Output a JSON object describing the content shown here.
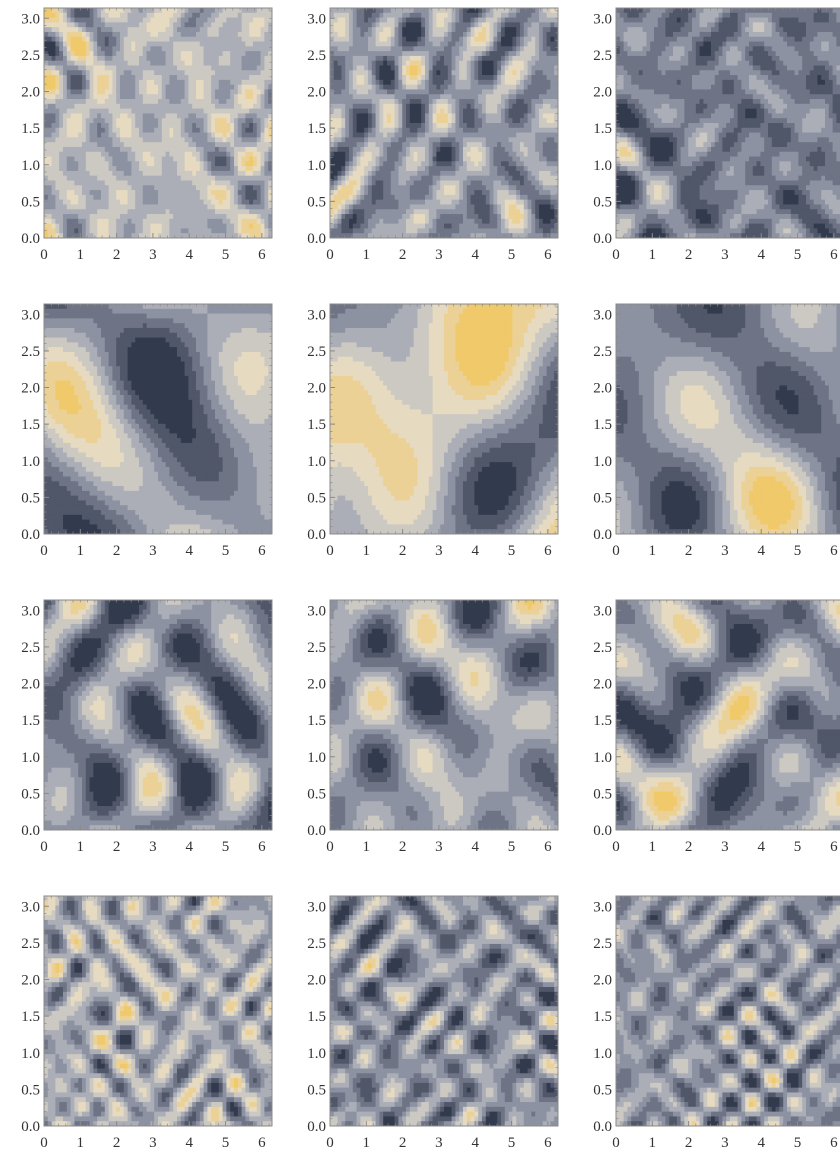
{
  "figure": {
    "colors": {
      "dark": "#323a4d",
      "mid": "#9ea3b2",
      "light": "#e5dccb",
      "warm": "#f0c96a",
      "frame": "#8a8a8a",
      "contour": "#2a2a2a"
    }
  },
  "chart_data": [
    {
      "type": "heatmap",
      "variant": "contour",
      "row": 1,
      "col": 1,
      "seed": 11,
      "complexity": "high",
      "warm_bias": 0.1,
      "xlim": [
        0,
        6.28
      ],
      "ylim": [
        0,
        3.14
      ],
      "x_ticks": [
        "0",
        "1",
        "2",
        "3",
        "4",
        "5",
        "6"
      ],
      "y_ticks": [
        "0.0",
        "0.5",
        "1.0",
        "1.5",
        "2.0",
        "2.5",
        "3.0"
      ],
      "grid": false
    },
    {
      "type": "heatmap",
      "variant": "contour",
      "row": 1,
      "col": 2,
      "seed": 12,
      "complexity": "high",
      "warm_bias": 0.0,
      "xlim": [
        0,
        6.28
      ],
      "ylim": [
        0,
        3.14
      ],
      "x_ticks": [
        "0",
        "1",
        "2",
        "3",
        "4",
        "5",
        "6"
      ],
      "y_ticks": [
        "0.0",
        "0.5",
        "1.0",
        "1.5",
        "2.0",
        "2.5",
        "3.0"
      ],
      "grid": false
    },
    {
      "type": "heatmap",
      "variant": "contour",
      "row": 1,
      "col": 3,
      "seed": 13,
      "complexity": "high",
      "warm_bias": -0.1,
      "xlim": [
        0,
        6.28
      ],
      "ylim": [
        0,
        3.14
      ],
      "x_ticks": [
        "0",
        "1",
        "2",
        "3",
        "4",
        "5",
        "6"
      ],
      "y_ticks": [
        "0.0",
        "0.5",
        "1.0",
        "1.5",
        "2.0",
        "2.5",
        "3.0"
      ],
      "grid": false
    },
    {
      "type": "heatmap",
      "variant": "contour",
      "row": 2,
      "col": 1,
      "seed": 21,
      "complexity": "low",
      "warm_bias": 0.0,
      "xlim": [
        0,
        6.28
      ],
      "ylim": [
        0,
        3.14
      ],
      "x_ticks": [
        "0",
        "1",
        "2",
        "3",
        "4",
        "5",
        "6"
      ],
      "y_ticks": [
        "0.0",
        "0.5",
        "1.0",
        "1.5",
        "2.0",
        "2.5",
        "3.0"
      ],
      "grid": false
    },
    {
      "type": "heatmap",
      "variant": "contour",
      "row": 2,
      "col": 2,
      "seed": 22,
      "complexity": "low",
      "warm_bias": 0.1,
      "xlim": [
        0,
        6.28
      ],
      "ylim": [
        0,
        3.14
      ],
      "x_ticks": [
        "0",
        "1",
        "2",
        "3",
        "4",
        "5",
        "6"
      ],
      "y_ticks": [
        "0.0",
        "0.5",
        "1.0",
        "1.5",
        "2.0",
        "2.5",
        "3.0"
      ],
      "grid": false
    },
    {
      "type": "heatmap",
      "variant": "contour",
      "row": 2,
      "col": 3,
      "seed": 23,
      "complexity": "low",
      "warm_bias": 0.1,
      "xlim": [
        0,
        6.28
      ],
      "ylim": [
        0,
        3.14
      ],
      "x_ticks": [
        "0",
        "1",
        "2",
        "3",
        "4",
        "5",
        "6"
      ],
      "y_ticks": [
        "0.0",
        "0.5",
        "1.0",
        "1.5",
        "2.0",
        "2.5",
        "3.0"
      ],
      "grid": false
    },
    {
      "type": "heatmap",
      "variant": "contour",
      "row": 3,
      "col": 1,
      "seed": 31,
      "complexity": "medium",
      "warm_bias": -0.05,
      "xlim": [
        0,
        6.28
      ],
      "ylim": [
        0,
        3.14
      ],
      "x_ticks": [
        "0",
        "1",
        "2",
        "3",
        "4",
        "5",
        "6"
      ],
      "y_ticks": [
        "0.0",
        "0.5",
        "1.0",
        "1.5",
        "2.0",
        "2.5",
        "3.0"
      ],
      "grid": false
    },
    {
      "type": "heatmap",
      "variant": "contour",
      "row": 3,
      "col": 2,
      "seed": 32,
      "complexity": "medium",
      "warm_bias": 0.0,
      "xlim": [
        0,
        6.28
      ],
      "ylim": [
        0,
        3.14
      ],
      "x_ticks": [
        "0",
        "1",
        "2",
        "3",
        "4",
        "5",
        "6"
      ],
      "y_ticks": [
        "0.0",
        "0.5",
        "1.0",
        "1.5",
        "2.0",
        "2.5",
        "3.0"
      ],
      "grid": false
    },
    {
      "type": "heatmap",
      "variant": "contour",
      "row": 3,
      "col": 3,
      "seed": 33,
      "complexity": "medium",
      "warm_bias": 0.05,
      "xlim": [
        0,
        6.28
      ],
      "ylim": [
        0,
        3.14
      ],
      "x_ticks": [
        "0",
        "1",
        "2",
        "3",
        "4",
        "5",
        "6"
      ],
      "y_ticks": [
        "0.0",
        "0.5",
        "1.0",
        "1.5",
        "2.0",
        "2.5",
        "3.0"
      ],
      "grid": false
    },
    {
      "type": "heatmap",
      "variant": "contour",
      "row": 4,
      "col": 1,
      "seed": 41,
      "complexity": "very-high",
      "warm_bias": 0.05,
      "xlim": [
        0,
        6.28
      ],
      "ylim": [
        0,
        3.14
      ],
      "x_ticks": [
        "0",
        "1",
        "2",
        "3",
        "4",
        "5",
        "6"
      ],
      "y_ticks": [
        "0.0",
        "0.5",
        "1.0",
        "1.5",
        "2.0",
        "2.5",
        "3.0"
      ],
      "grid": false
    },
    {
      "type": "heatmap",
      "variant": "contour",
      "row": 4,
      "col": 2,
      "seed": 42,
      "complexity": "very-high",
      "warm_bias": 0.0,
      "xlim": [
        0,
        6.28
      ],
      "ylim": [
        0,
        3.14
      ],
      "x_ticks": [
        "0",
        "1",
        "2",
        "3",
        "4",
        "5",
        "6"
      ],
      "y_ticks": [
        "0.0",
        "0.5",
        "1.0",
        "1.5",
        "2.0",
        "2.5",
        "3.0"
      ],
      "grid": false
    },
    {
      "type": "heatmap",
      "variant": "contour",
      "row": 4,
      "col": 3,
      "seed": 43,
      "complexity": "very-high",
      "warm_bias": 0.0,
      "xlim": [
        0,
        6.28
      ],
      "ylim": [
        0,
        3.14
      ],
      "x_ticks": [
        "0",
        "1",
        "2",
        "3",
        "4",
        "5",
        "6"
      ],
      "y_ticks": [
        "0.0",
        "0.5",
        "1.0",
        "1.5",
        "2.0",
        "2.5",
        "3.0"
      ],
      "grid": false
    }
  ]
}
